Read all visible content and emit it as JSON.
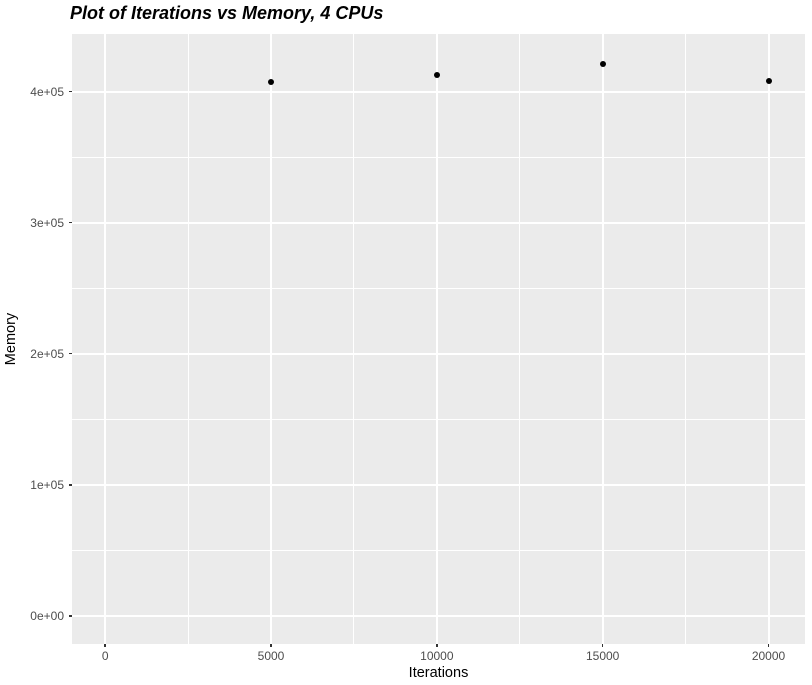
{
  "chart_data": {
    "type": "scatter",
    "title": "Plot of Iterations vs Memory, 4 CPUs",
    "xlabel": "Iterations",
    "ylabel": "Memory",
    "x": [
      5000,
      10000,
      15000,
      20000
    ],
    "y": [
      407000,
      413000,
      421000,
      408000
    ],
    "xlim": [
      -1000,
      21100
    ],
    "ylim": [
      -21500,
      444000
    ],
    "x_ticks": {
      "values": [
        0,
        5000,
        10000,
        15000,
        20000
      ],
      "labels": [
        "0",
        "5000",
        "10000",
        "15000",
        "20000"
      ]
    },
    "y_ticks": {
      "values": [
        0,
        100000,
        200000,
        300000,
        400000
      ],
      "labels": [
        "0e+00",
        "1e+05",
        "2e+05",
        "3e+05",
        "4e+05"
      ]
    },
    "x_minor_ticks": [
      2500,
      7500,
      12500,
      17500
    ],
    "y_minor_ticks": [
      50000,
      150000,
      250000,
      350000
    ],
    "grid": "on",
    "legend": "none",
    "theme": "ggplot2-grey",
    "colors": {
      "background": "#FFFFFF",
      "panel_background": "#EBEBEB",
      "gridline": "#FFFFFF",
      "point": "#000000",
      "tick_label": "#4D4D4D",
      "tick_mark": "#333333",
      "axis_title": "#000000",
      "title": "#000000"
    }
  }
}
